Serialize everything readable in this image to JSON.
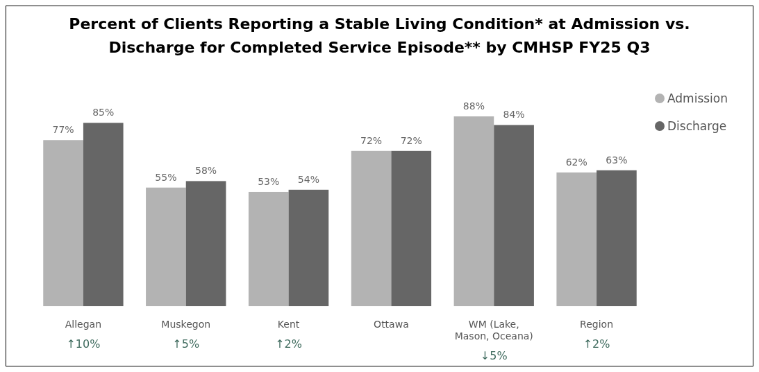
{
  "chart_data": {
    "type": "bar",
    "title": "Percent of Clients Reporting a Stable Living Condition* at Admission vs. Discharge for Completed Service Episode** by CMHSP FY25 Q3",
    "categories": [
      "Allegan",
      "Muskegon",
      "Kent",
      "Ottawa",
      "WM (Lake, Mason, Oceana)",
      "Region"
    ],
    "series": [
      {
        "name": "Admission",
        "color": "#b3b3b3",
        "values": [
          77,
          55,
          53,
          72,
          88,
          62
        ],
        "value_labels": [
          "77%",
          "55%",
          "53%",
          "72%",
          "88%",
          "62%"
        ]
      },
      {
        "name": "Discharge",
        "color": "#666666",
        "values": [
          85,
          58,
          54,
          72,
          84,
          63
        ],
        "value_labels": [
          "85%",
          "58%",
          "54%",
          "72%",
          "84%",
          "63%"
        ]
      }
    ],
    "relative": false,
    "legend": "top right",
    "annotations": [
      "↑10%",
      "↑5%",
      "↑2%",
      null,
      "↓5%",
      "↑2%"
    ]
  }
}
